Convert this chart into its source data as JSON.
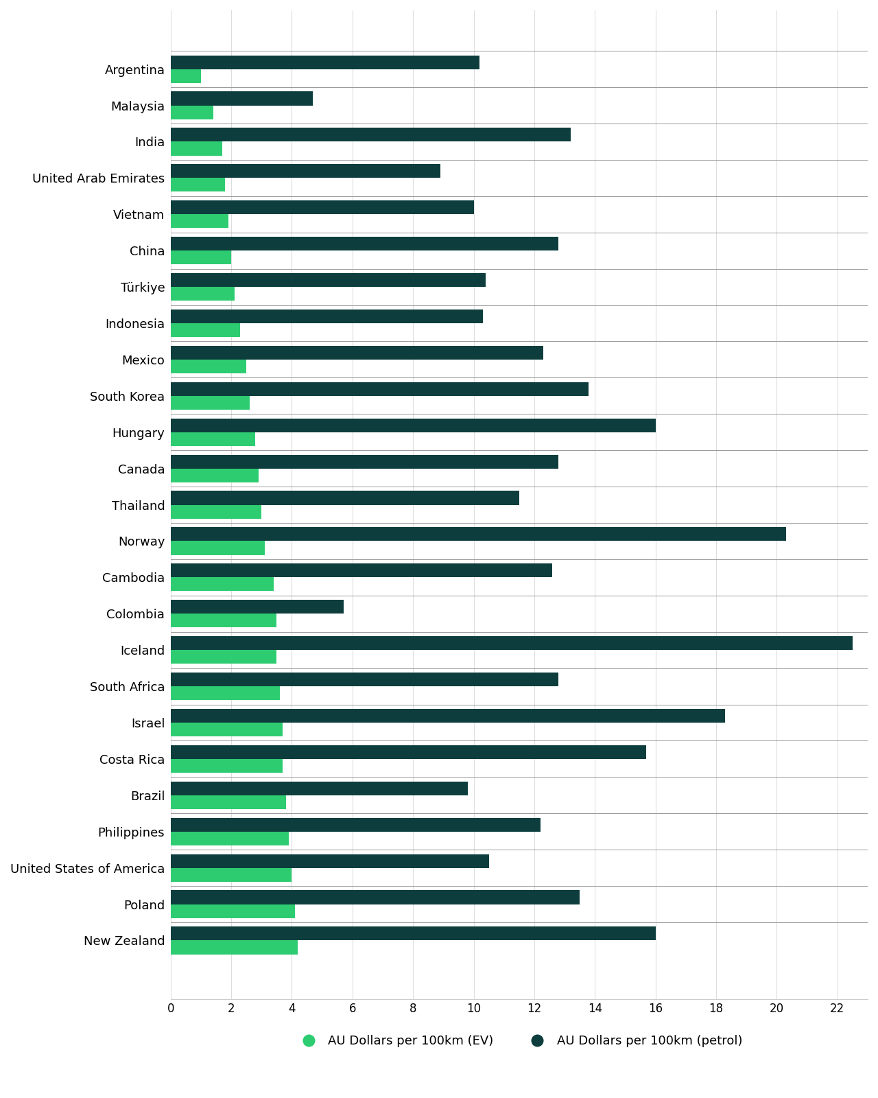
{
  "countries": [
    "Argentina",
    "Malaysia",
    "India",
    "United Arab Emirates",
    "Vietnam",
    "China",
    "Türkiye",
    "Indonesia",
    "Mexico",
    "South Korea",
    "Hungary",
    "Canada",
    "Thailand",
    "Norway",
    "Cambodia",
    "Colombia",
    "Iceland",
    "South Africa",
    "Israel",
    "Costa Rica",
    "Brazil",
    "Philippines",
    "United States of America",
    "Poland",
    "New Zealand"
  ],
  "ev_values": [
    1.0,
    1.4,
    1.7,
    1.8,
    1.9,
    2.0,
    2.1,
    2.3,
    2.5,
    2.6,
    2.8,
    2.9,
    3.0,
    3.1,
    3.4,
    3.5,
    3.5,
    3.6,
    3.7,
    3.7,
    3.8,
    3.9,
    4.0,
    4.1,
    4.2
  ],
  "petrol_values": [
    10.2,
    4.7,
    13.2,
    8.9,
    10.0,
    12.8,
    10.4,
    10.3,
    12.3,
    13.8,
    16.0,
    12.8,
    11.5,
    20.3,
    12.6,
    5.7,
    22.5,
    12.8,
    18.3,
    15.7,
    9.8,
    12.2,
    10.5,
    13.5,
    16.0
  ],
  "ev_color": "#2ecc71",
  "petrol_color": "#0d3d3d",
  "background_color": "#ffffff",
  "ev_label": "AU Dollars per 100km (EV)",
  "petrol_label": "AU Dollars per 100km (petrol)",
  "xlim_max": 23,
  "xticks": [
    0,
    2,
    4,
    6,
    8,
    10,
    12,
    14,
    16,
    18,
    20,
    22
  ],
  "bar_height": 0.38,
  "separator_color": "#999999",
  "grid_color": "#dddddd",
  "label_fontsize": 13,
  "tick_fontsize": 12,
  "legend_fontsize": 13
}
